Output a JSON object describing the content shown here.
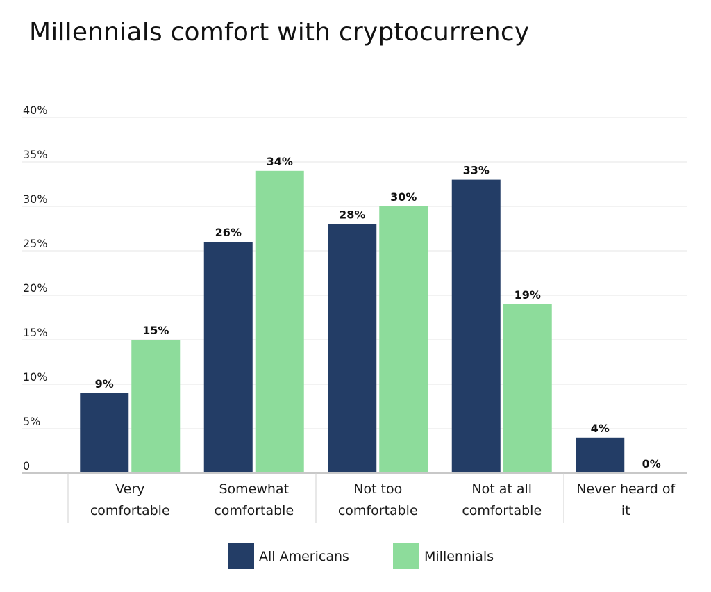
{
  "chart_data": {
    "type": "bar",
    "title": "Millennials comfort with cryptocurrency",
    "xlabel": "",
    "ylabel": "",
    "ylim": [
      0,
      40
    ],
    "yticks": [
      {
        "value": 0,
        "label": "0"
      },
      {
        "value": 5,
        "label": "5%"
      },
      {
        "value": 10,
        "label": "10%"
      },
      {
        "value": 15,
        "label": "15%"
      },
      {
        "value": 20,
        "label": "20%"
      },
      {
        "value": 25,
        "label": "25%"
      },
      {
        "value": 30,
        "label": "30%"
      },
      {
        "value": 35,
        "label": "35%"
      },
      {
        "value": 40,
        "label": "40%"
      }
    ],
    "categories": [
      [
        "Very",
        "comfortable"
      ],
      [
        "Somewhat",
        "comfortable"
      ],
      [
        "Not too",
        "comfortable"
      ],
      [
        "Not at all",
        "comfortable"
      ],
      [
        "Never heard of",
        "it"
      ]
    ],
    "series": [
      {
        "name": "All Americans",
        "color": "#233d66",
        "values": [
          9,
          26,
          28,
          33,
          4
        ],
        "labels": [
          "9%",
          "26%",
          "28%",
          "33%",
          "4%"
        ]
      },
      {
        "name": "Millennials",
        "color": "#8ddc9b",
        "values": [
          15,
          34,
          30,
          19,
          0
        ],
        "labels": [
          "15%",
          "34%",
          "30%",
          "19%",
          "0%"
        ]
      }
    ],
    "grid": true,
    "legend_position": "bottom-center"
  }
}
